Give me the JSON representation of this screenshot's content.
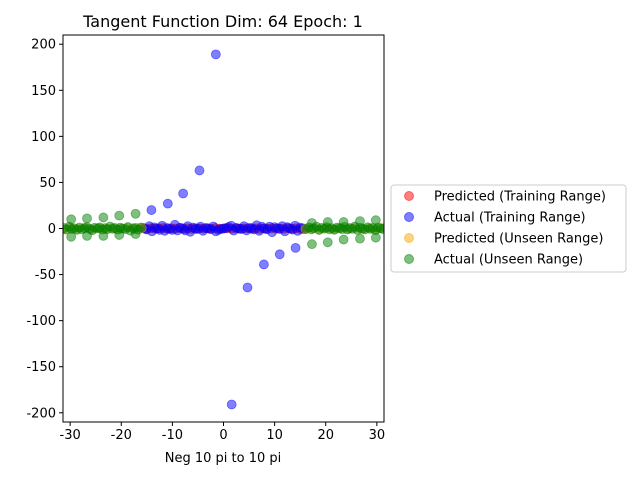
{
  "chart_data": {
    "type": "scatter",
    "title": "Tangent Function Dim: 64 Epoch: 1",
    "xlabel": "Neg 10 pi to 10 pi",
    "ylabel": "",
    "xlim": [
      -31.4,
      31.4
    ],
    "ylim": [
      -210,
      210
    ],
    "xticks": [
      -30,
      -20,
      -10,
      0,
      10,
      20,
      30
    ],
    "yticks": [
      -200,
      -150,
      -100,
      -50,
      0,
      50,
      100,
      150,
      200
    ],
    "grid": false,
    "legend_position": "outside-right",
    "series": [
      {
        "name": "Predicted (Training Range)",
        "color": "#ff0000",
        "alpha": 0.5,
        "x": [
          -15.7,
          -15.0,
          -14.2,
          -13.4,
          -12.6,
          -11.8,
          -11.0,
          -10.2,
          -9.4,
          -8.6,
          -7.8,
          -7.1,
          -6.3,
          -5.5,
          -4.7,
          -3.9,
          -3.1,
          -2.4,
          -1.6,
          -0.8,
          0.0,
          0.8,
          1.6,
          2.4,
          3.1,
          3.9,
          4.7,
          5.5,
          6.3,
          7.1,
          7.8,
          8.6,
          9.4,
          10.2,
          11.0,
          11.8,
          12.6,
          13.4,
          14.2,
          15.0,
          15.7
        ],
        "y": [
          0.8,
          -0.6,
          0.4,
          -0.3,
          0.2,
          0.5,
          -0.4,
          0.3,
          -0.2,
          0.6,
          -0.5,
          0.2,
          -0.3,
          0.4,
          0.1,
          -0.2,
          0.3,
          -0.4,
          0.5,
          -0.1,
          0.0,
          0.2,
          -0.3,
          0.4,
          -0.2,
          0.1,
          0.3,
          -0.4,
          0.2,
          -0.5,
          0.3,
          -0.2,
          0.4,
          -0.3,
          0.2,
          -0.4,
          0.5,
          -0.2,
          0.3,
          -0.6,
          -0.8
        ]
      },
      {
        "name": "Actual (Training Range)",
        "color": "#0000ff",
        "alpha": 0.5,
        "x": [
          -15.5,
          -15.0,
          -14.5,
          -14.0,
          -13.5,
          -13.0,
          -12.5,
          -12.0,
          -11.5,
          -11.0,
          -10.5,
          -10.0,
          -9.5,
          -9.0,
          -8.5,
          -8.0,
          -7.5,
          -7.0,
          -6.5,
          -6.0,
          -5.5,
          -5.0,
          -4.5,
          -4.0,
          -3.5,
          -3.0,
          -2.5,
          -2.0,
          -1.5,
          -1.0,
          -0.5,
          0.0,
          0.5,
          1.0,
          1.5,
          2.0,
          2.5,
          3.0,
          3.5,
          4.0,
          4.5,
          5.0,
          5.5,
          6.0,
          6.5,
          7.0,
          7.5,
          8.0,
          8.5,
          9.0,
          9.5,
          10.0,
          10.5,
          11.0,
          11.5,
          12.0,
          12.5,
          13.0,
          13.5,
          14.0,
          14.5,
          15.0,
          15.5,
          -14.1,
          -10.9,
          -7.9,
          -4.7,
          -1.5,
          1.6,
          4.7,
          7.9,
          11.0,
          14.1
        ],
        "y": [
          -0.2,
          -1.0,
          2.5,
          -3.0,
          1.2,
          0.0,
          -1.5,
          3.0,
          -2.5,
          0.5,
          -0.3,
          -1.5,
          4.0,
          -2.0,
          0.8,
          0.2,
          -2.0,
          2.5,
          -3.5,
          1.0,
          -0.5,
          -0.5,
          2.0,
          -2.5,
          0.6,
          0.1,
          -0.7,
          2.2,
          -3.0,
          -1.6,
          -0.5,
          0.0,
          0.5,
          1.6,
          3.0,
          -2.2,
          0.7,
          -0.1,
          -0.6,
          2.5,
          -2.0,
          0.5,
          0.5,
          -1.0,
          3.5,
          -2.5,
          2.0,
          -0.2,
          -0.8,
          2.0,
          -4.0,
          1.5,
          0.3,
          -0.5,
          2.5,
          -3.0,
          1.5,
          0.0,
          -1.2,
          3.0,
          -2.5,
          1.0,
          0.2,
          20.0,
          27.0,
          38.0,
          63.0,
          189.0,
          -191.0,
          -64.0,
          -39.0,
          -28.0,
          -21.0
        ]
      },
      {
        "name": "Predicted (Unseen Range)",
        "color": "#ffa500",
        "alpha": 0.5,
        "x": [
          -31.4,
          -30.0,
          -28.6,
          -27.2,
          -25.8,
          -24.4,
          -23.0,
          -21.6,
          -20.2,
          -18.8,
          -17.4,
          -16.0,
          16.0,
          17.4,
          18.8,
          20.2,
          21.6,
          23.0,
          24.4,
          25.8,
          27.2,
          28.6,
          30.0,
          31.4
        ],
        "y": [
          -1.5,
          0.8,
          -0.5,
          1.2,
          -0.8,
          0.4,
          -1.0,
          0.6,
          -0.3,
          1.0,
          -0.7,
          0.5,
          -0.5,
          0.7,
          -1.0,
          0.3,
          -0.6,
          1.0,
          -0.4,
          0.8,
          -1.2,
          0.5,
          -0.8,
          1.5
        ]
      },
      {
        "name": "Actual (Unseen Range)",
        "color": "#008000",
        "alpha": 0.5,
        "x": [
          -31.2,
          -30.7,
          -30.2,
          -29.7,
          -29.2,
          -28.7,
          -28.2,
          -27.7,
          -27.2,
          -26.7,
          -26.2,
          -25.7,
          -25.2,
          -24.7,
          -24.2,
          -23.7,
          -23.2,
          -22.7,
          -22.2,
          -21.7,
          -21.2,
          -20.7,
          -20.2,
          -19.7,
          -19.2,
          -18.7,
          -18.2,
          -17.7,
          -17.2,
          -16.7,
          -16.2,
          16.2,
          16.7,
          17.2,
          17.7,
          18.2,
          18.7,
          19.2,
          19.7,
          20.2,
          20.7,
          21.2,
          21.7,
          22.2,
          22.7,
          23.2,
          23.7,
          24.2,
          24.7,
          25.2,
          25.7,
          26.2,
          26.7,
          27.2,
          27.7,
          28.2,
          28.7,
          29.2,
          29.7,
          30.2,
          30.7,
          31.2,
          -29.8,
          -29.8,
          -26.7,
          -26.7,
          -23.5,
          -23.5,
          -20.4,
          -20.4,
          -17.2,
          -17.2,
          17.3,
          17.3,
          20.4,
          20.4,
          23.5,
          23.5,
          26.7,
          26.7,
          29.8,
          29.8
        ],
        "y": [
          0.5,
          -1.0,
          2.0,
          -0.5,
          0.3,
          -1.5,
          1.0,
          -0.8,
          0.2,
          1.5,
          -0.4,
          -2.0,
          0.8,
          0.1,
          1.2,
          -1.0,
          0.4,
          -0.6,
          2.2,
          -0.3,
          0.5,
          -1.2,
          0.9,
          0.0,
          -0.7,
          1.6,
          -2.4,
          0.3,
          0.6,
          -1.3,
          1.0,
          -0.5,
          1.2,
          -0.9,
          0.3,
          2.0,
          -1.6,
          0.7,
          -0.2,
          1.5,
          -0.8,
          0.4,
          -1.4,
          0.9,
          0.2,
          -0.6,
          1.8,
          -1.1,
          0.5,
          -0.3,
          2.1,
          -1.5,
          0.8,
          0.0,
          -0.9,
          1.3,
          -0.4,
          0.6,
          -1.8,
          1.1,
          0.2,
          -0.5,
          10.0,
          -9.0,
          11.0,
          -8.0,
          12.0,
          -8.0,
          14.0,
          -7.0,
          16.0,
          -6.0,
          6.0,
          -17.0,
          7.0,
          -15.0,
          7.0,
          -12.0,
          8.0,
          -11.0,
          9.0,
          -10.0
        ]
      }
    ]
  }
}
